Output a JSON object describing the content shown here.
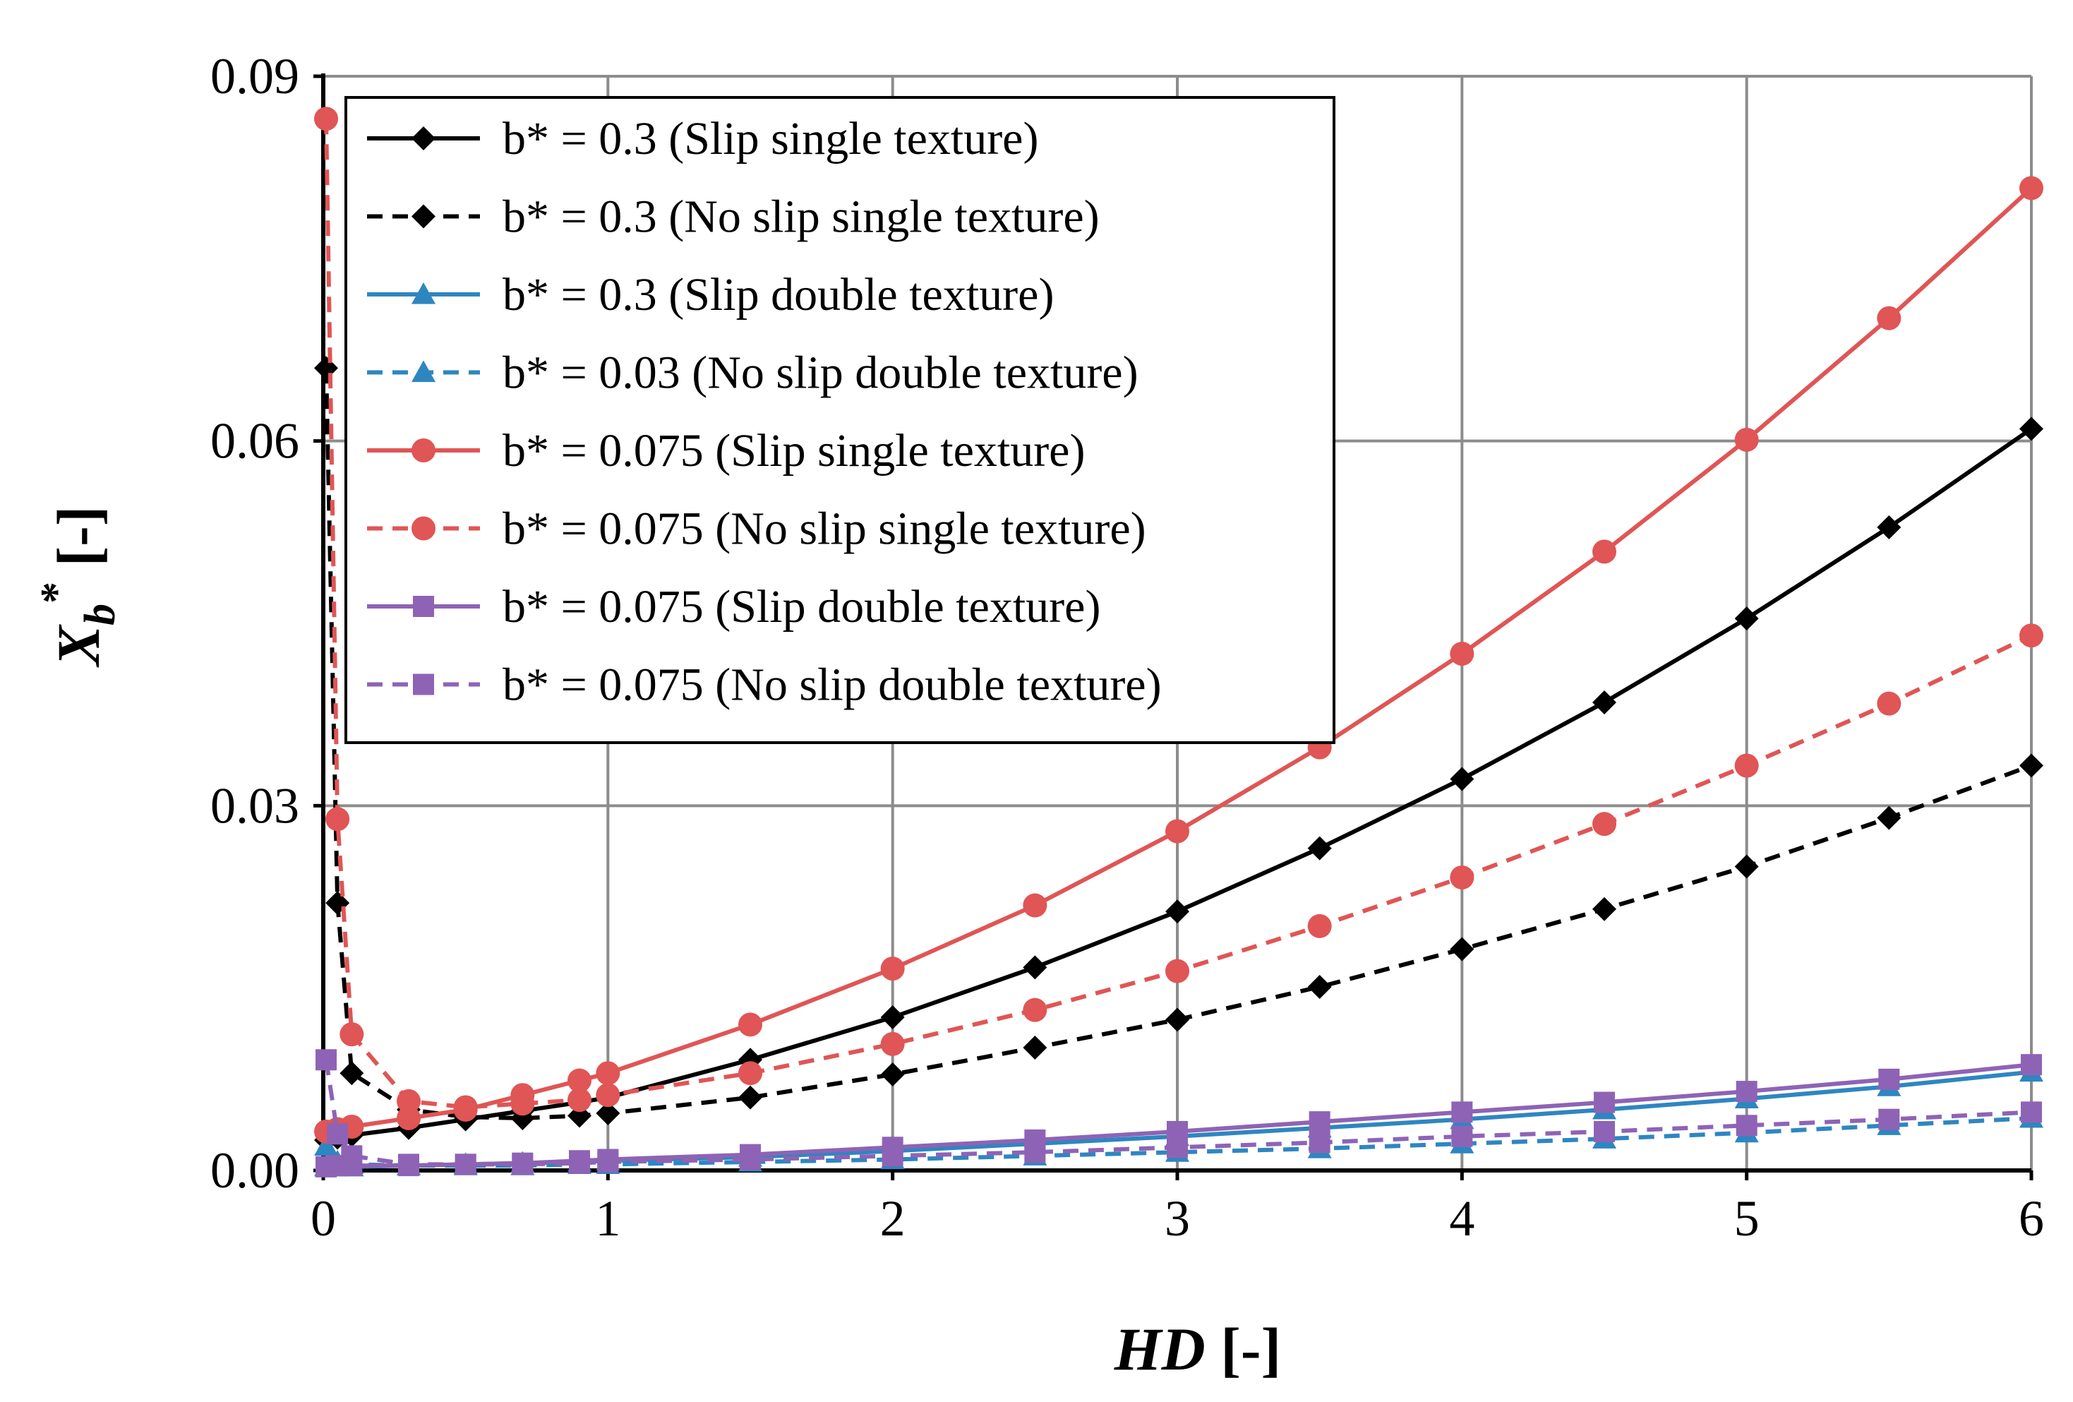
{
  "chart_data": {
    "type": "line",
    "title": "",
    "xlabel": {
      "italic": "HD",
      "suffix": " [-]"
    },
    "ylabel": {
      "base": "X",
      "sub": "b",
      "sup": "*",
      "suffix": " [-]"
    },
    "xlim": [
      0,
      6
    ],
    "ylim": [
      0,
      0.09
    ],
    "xticks": [
      "0",
      "1",
      "2",
      "3",
      "4",
      "5",
      "6"
    ],
    "yticks": [
      "0.00",
      "0.03",
      "0.06",
      "0.09"
    ],
    "grid": true,
    "legend_position": "top-left",
    "x": [
      0.01,
      0.05,
      0.1,
      0.3,
      0.5,
      0.7,
      0.9,
      1,
      1.5,
      2,
      2.5,
      3,
      3.5,
      4,
      4.5,
      5,
      5.5,
      6
    ],
    "series": [
      {
        "name": "b* = 0.3 (Slip single texture)",
        "color": "#000000",
        "dash": "solid",
        "marker": "diamond",
        "values": [
          0.0025,
          0.0027,
          0.0029,
          0.0035,
          0.0042,
          0.0049,
          0.0056,
          0.006,
          0.0091,
          0.0126,
          0.0167,
          0.0213,
          0.0265,
          0.0322,
          0.0385,
          0.0454,
          0.0529,
          0.061
        ]
      },
      {
        "name": "b* = 0.3 (No slip single texture)",
        "color": "#000000",
        "dash": "dashed",
        "marker": "diamond",
        "values": [
          0.066,
          0.022,
          0.008,
          0.005,
          0.0044,
          0.0043,
          0.0045,
          0.0047,
          0.006,
          0.0079,
          0.0101,
          0.0124,
          0.0151,
          0.0182,
          0.0215,
          0.025,
          0.029,
          0.0333
        ]
      },
      {
        "name": "b* = 0.3 (Slip double texture)",
        "color": "#2E86C1",
        "dash": "solid",
        "marker": "triangle",
        "values": [
          0.0003,
          0.0003,
          0.0003,
          0.0004,
          0.0005,
          0.0006,
          0.0007,
          0.0008,
          0.0011,
          0.0016,
          0.0022,
          0.0028,
          0.0035,
          0.0042,
          0.005,
          0.0059,
          0.0069,
          0.0081
        ]
      },
      {
        "name": "b* = 0.03 (No slip double texture)",
        "color": "#2E86C1",
        "dash": "dashed",
        "marker": "triangle",
        "values": [
          0.002,
          0.0007,
          0.0005,
          0.0004,
          0.0004,
          0.0004,
          0.0005,
          0.0005,
          0.0007,
          0.0009,
          0.0012,
          0.0015,
          0.0018,
          0.0022,
          0.0026,
          0.0031,
          0.0037,
          0.0043
        ]
      },
      {
        "name": "b* = 0.075 (Slip single texture)",
        "color": "#E05555",
        "dash": "solid",
        "marker": "circle",
        "values": [
          0.0032,
          0.0034,
          0.0036,
          0.0043,
          0.005,
          0.0062,
          0.0074,
          0.008,
          0.012,
          0.0166,
          0.0218,
          0.0279,
          0.0348,
          0.0425,
          0.0509,
          0.0601,
          0.0701,
          0.0808
        ]
      },
      {
        "name": "b* = 0.075 (No slip single texture)",
        "color": "#E05555",
        "dash": "dashed",
        "marker": "circle",
        "values": [
          0.0865,
          0.0289,
          0.0112,
          0.0057,
          0.0052,
          0.0055,
          0.0058,
          0.0062,
          0.008,
          0.0104,
          0.0132,
          0.0164,
          0.0201,
          0.0241,
          0.0285,
          0.0333,
          0.0384,
          0.044
        ]
      },
      {
        "name": "b* = 0.075 (Slip double texture)",
        "color": "#8E63B5",
        "dash": "solid",
        "marker": "square",
        "values": [
          0.0003,
          0.0004,
          0.0004,
          0.0004,
          0.0005,
          0.0006,
          0.0008,
          0.0009,
          0.0013,
          0.0019,
          0.0025,
          0.0032,
          0.004,
          0.0048,
          0.0056,
          0.0065,
          0.0075,
          0.0087
        ]
      },
      {
        "name": "b* = 0.075 (No slip double texture)",
        "color": "#8E63B5",
        "dash": "dashed",
        "marker": "square",
        "values": [
          0.0091,
          0.003,
          0.0012,
          0.0005,
          0.0005,
          0.0005,
          0.0006,
          0.0007,
          0.0009,
          0.0012,
          0.0015,
          0.0019,
          0.0023,
          0.0028,
          0.0032,
          0.0037,
          0.0042,
          0.0048
        ]
      }
    ]
  }
}
